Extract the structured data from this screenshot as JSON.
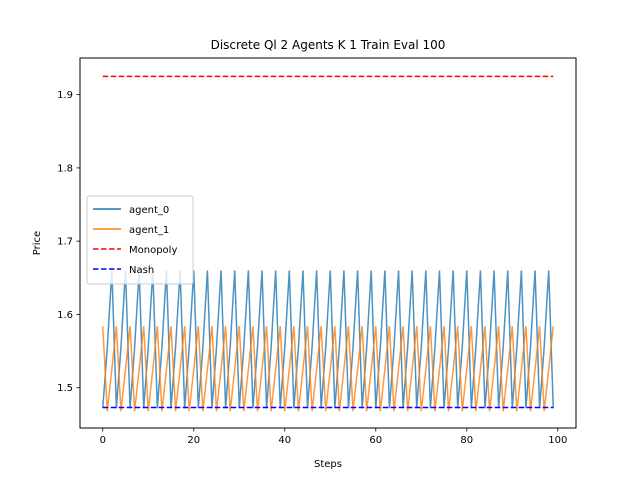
{
  "chart_data": {
    "type": "line",
    "title": "Discrete Ql 2 Agents K 1 Train Eval 100",
    "xlabel": "Steps",
    "ylabel": "Price",
    "xlim": [
      -5,
      104
    ],
    "ylim": [
      1.445,
      1.95
    ],
    "xticks": [
      0,
      20,
      40,
      60,
      80,
      100
    ],
    "yticks": [
      1.5,
      1.6,
      1.7,
      1.8,
      1.9
    ],
    "ytick_labels": [
      "1.5",
      "1.6",
      "1.7",
      "1.8",
      "1.9"
    ],
    "grid": false,
    "legend_position": "center-left",
    "series": [
      {
        "name": "agent_0",
        "color": "#1f77b4",
        "style": "solid",
        "pattern": {
          "x_start": 0,
          "x_end": 99,
          "cycle": [
            1.472,
            1.555,
            1.66
          ]
        }
      },
      {
        "name": "agent_1",
        "color": "#ff7f0e",
        "style": "solid",
        "pattern": {
          "x_start": 0,
          "x_end": 99,
          "cycle": [
            1.584,
            1.468,
            1.525
          ]
        }
      },
      {
        "name": "Monopoly",
        "color": "#ff0000",
        "style": "dashed",
        "x": [
          0,
          99
        ],
        "y": [
          1.925,
          1.925
        ]
      },
      {
        "name": "Nash",
        "color": "#0000ff",
        "style": "dashed",
        "x": [
          0,
          99
        ],
        "y": [
          1.473,
          1.473
        ]
      }
    ]
  }
}
